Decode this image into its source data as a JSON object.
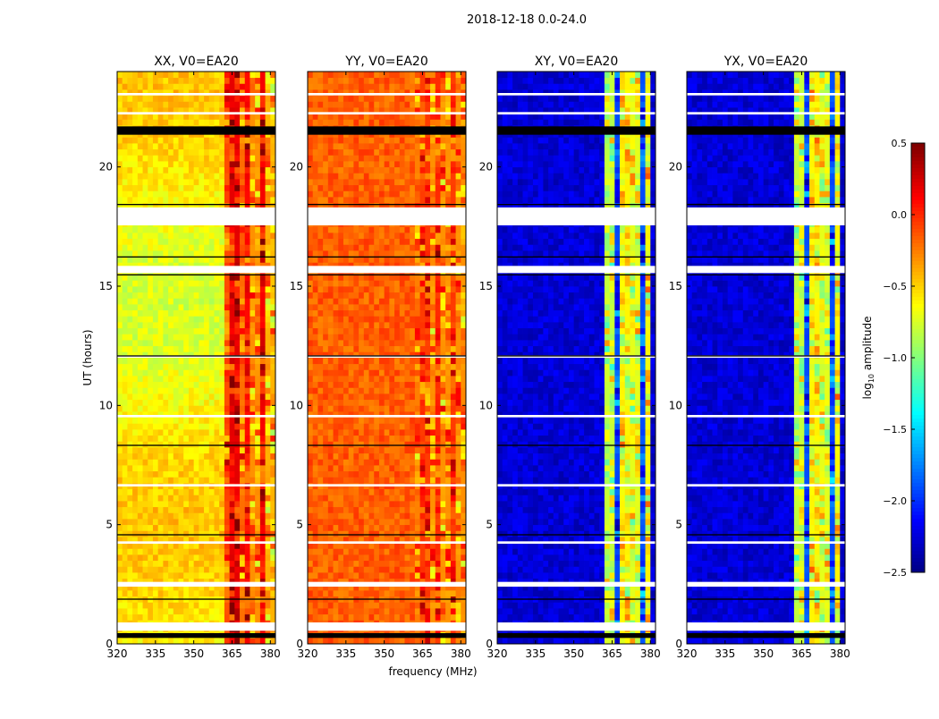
{
  "chart_data": {
    "type": "heatmap",
    "title": "2018-12-18 0.0-24.0",
    "xlabel": "frequency (MHz)",
    "ylabel": "UT (hours)",
    "xlim": [
      320,
      382
    ],
    "ylim": [
      0,
      24
    ],
    "xticks": [
      "320",
      "335",
      "350",
      "365",
      "380"
    ],
    "yticks": [
      "0",
      "5",
      "10",
      "15",
      "20"
    ],
    "colormap": "jet",
    "colorbar": {
      "label": "log10 amplitude",
      "label_main": "log",
      "label_sub": "10",
      "label_rest": " amplitude",
      "vmin": -2.5,
      "vmax": 0.5,
      "ticks": [
        "0.5",
        "0.0",
        "−0.5",
        "−1.0",
        "−1.5",
        "−2.0",
        "−2.5"
      ],
      "tick_values": [
        0.5,
        0.0,
        -0.5,
        -1.0,
        -1.5,
        -2.0,
        -2.5
      ]
    },
    "panels": [
      {
        "title": "XX, V0=EA20",
        "base": -0.6,
        "slope": 0.15,
        "bands": [
          [
            362,
            365,
            -0.1
          ],
          [
            365,
            368,
            0.2
          ],
          [
            368,
            370,
            -0.2
          ],
          [
            370,
            373,
            0.1
          ],
          [
            373,
            376,
            -0.3
          ],
          [
            376,
            379,
            0.15
          ],
          [
            379,
            382,
            -0.4
          ]
        ]
      },
      {
        "title": "YY, V0=EA20",
        "base": -0.15,
        "slope": 0.0,
        "bands": [
          [
            362,
            365,
            -0.25
          ],
          [
            365,
            368,
            -0.05
          ],
          [
            368,
            370,
            -0.3
          ],
          [
            370,
            373,
            0.0
          ],
          [
            373,
            376,
            -0.3
          ],
          [
            376,
            379,
            -0.05
          ],
          [
            379,
            382,
            -0.3
          ]
        ]
      },
      {
        "title": "XY, V0=EA20",
        "base": -2.25,
        "slope": 0.0,
        "bands": [
          [
            362,
            366,
            -0.8
          ],
          [
            366,
            368,
            -1.9
          ],
          [
            368,
            372,
            -0.6
          ],
          [
            372,
            373,
            -1.9
          ],
          [
            373,
            377,
            -0.7
          ],
          [
            377,
            378,
            -1.9
          ],
          [
            378,
            381,
            -0.6
          ]
        ]
      },
      {
        "title": "YX, V0=EA20",
        "base": -2.25,
        "slope": 0.0,
        "bands": [
          [
            362,
            366,
            -0.8
          ],
          [
            366,
            368,
            -1.9
          ],
          [
            368,
            372,
            -0.6
          ],
          [
            372,
            373,
            -1.9
          ],
          [
            373,
            377,
            -0.7
          ],
          [
            377,
            378,
            -1.9
          ],
          [
            378,
            381,
            -0.6
          ]
        ]
      }
    ],
    "flagged_white_hours": [
      [
        0.55,
        0.9
      ],
      [
        2.4,
        2.6
      ],
      [
        15.55,
        15.85
      ],
      [
        17.55,
        18.3
      ],
      [
        23.0,
        23.1
      ],
      [
        22.2,
        22.3
      ],
      [
        9.5,
        9.6
      ],
      [
        6.6,
        6.7
      ],
      [
        12.0,
        12.1
      ],
      [
        4.2,
        4.3
      ]
    ],
    "flagged_black_hours": [
      [
        0.25,
        0.45
      ],
      [
        21.35,
        21.7
      ],
      [
        15.45,
        15.5
      ],
      [
        12.05,
        12.1
      ],
      [
        8.3,
        8.35
      ],
      [
        4.55,
        4.6
      ],
      [
        1.85,
        1.9
      ],
      [
        16.2,
        16.25
      ],
      [
        18.4,
        18.45
      ]
    ]
  }
}
